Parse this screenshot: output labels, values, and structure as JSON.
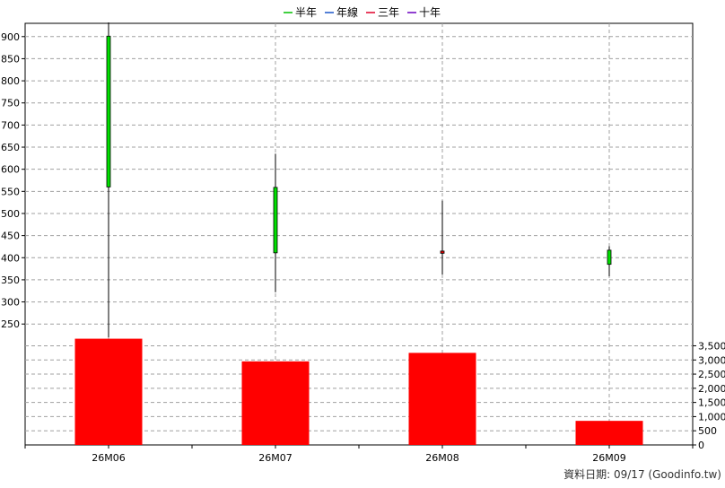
{
  "chart_data": {
    "type": "candlestick-with-volume",
    "legend": [
      {
        "name": "半年",
        "color": "#00c000"
      },
      {
        "name": "年線",
        "color": "#1a55c8"
      },
      {
        "name": "三年",
        "color": "#e0002a"
      },
      {
        "name": "十年",
        "color": "#6a00c0"
      }
    ],
    "categories": [
      "26M06",
      "26M07",
      "26M08",
      "26M09"
    ],
    "price_axis": {
      "min": 220,
      "max": 930,
      "ticks": [
        250,
        300,
        350,
        400,
        450,
        500,
        550,
        600,
        650,
        700,
        750,
        800,
        850,
        900
      ]
    },
    "volume_axis": {
      "min": 0,
      "max": 3800,
      "ticks": [
        0,
        500,
        1000,
        1500,
        2000,
        2500,
        3000,
        3500
      ],
      "tick_labels": [
        "0",
        "500",
        "1,000",
        "1,500",
        "2,000",
        "2,500",
        "3,000",
        "3,500"
      ]
    },
    "candles": [
      {
        "category": "26M06",
        "open": 560,
        "high": 932,
        "low": 220,
        "close": 901
      },
      {
        "category": "26M07",
        "open": 411,
        "high": 635,
        "low": 322,
        "close": 559
      },
      {
        "category": "26M08",
        "open": 415,
        "high": 529,
        "low": 362,
        "close": 410
      },
      {
        "category": "26M09",
        "open": 385,
        "high": 426,
        "low": 358,
        "close": 417
      }
    ],
    "volumes": [
      3750,
      2950,
      3250,
      850
    ],
    "colors": {
      "up": "#00e000",
      "down": "#e00000",
      "volume": "#ff0000",
      "wick": "#000000",
      "grid": "#a0a0a0"
    },
    "grid": true,
    "legend_position": "top-center"
  },
  "footer": {
    "text": "資料日期: 09/17  (Goodinfo.tw)"
  }
}
